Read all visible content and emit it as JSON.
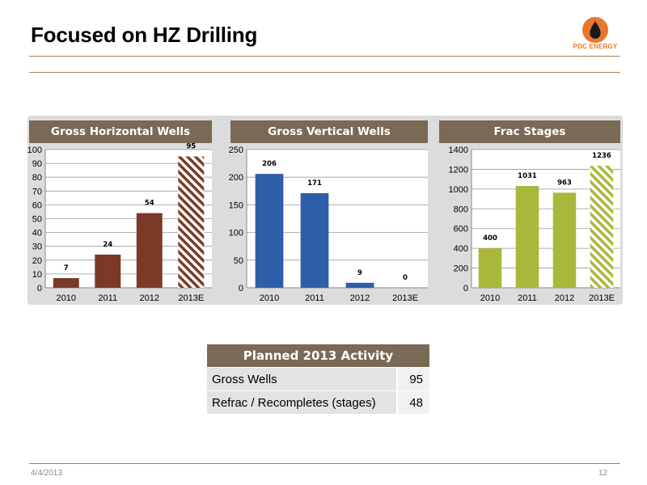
{
  "slide": {
    "title": "Focused on HZ Drilling",
    "logo_text": "PDC ENERGY",
    "footer_date": "4/4/2013",
    "page_number": "12"
  },
  "chart_data": [
    {
      "type": "bar",
      "title": "Gross Horizontal Wells",
      "categories": [
        "2010",
        "2011",
        "2012",
        "2013E"
      ],
      "values": [
        7,
        24,
        54,
        95
      ],
      "ylim": [
        0,
        100
      ],
      "yticks": [
        0,
        10,
        20,
        30,
        40,
        50,
        60,
        70,
        80,
        90,
        100
      ],
      "color": "#7b3a26",
      "estimate_pattern": "diagonal-hatch",
      "grid": true
    },
    {
      "type": "bar",
      "title": "Gross Vertical Wells",
      "categories": [
        "2010",
        "2011",
        "2012",
        "2013E"
      ],
      "values": [
        206,
        171,
        9,
        0
      ],
      "ylim": [
        0,
        250
      ],
      "yticks": [
        0,
        50,
        100,
        150,
        200,
        250
      ],
      "color": "#2e5ea8",
      "grid": true
    },
    {
      "type": "bar",
      "title": "Frac Stages",
      "categories": [
        "2010",
        "2011",
        "2012",
        "2013E"
      ],
      "values": [
        400,
        1031,
        963,
        1236
      ],
      "ylim": [
        0,
        1400
      ],
      "yticks": [
        0,
        200,
        400,
        600,
        800,
        1000,
        1200,
        1400
      ],
      "color": "#a9b83a",
      "estimate_pattern": "diagonal-hatch",
      "grid": true
    }
  ],
  "activity_table": {
    "title": "Planned 2013 Activity",
    "rows": [
      {
        "label": "Gross Wells",
        "value": "95"
      },
      {
        "label": "Refrac / Recompletes (stages)",
        "value": "48"
      }
    ]
  },
  "colors": {
    "header_bg": "#7a6a55",
    "rule": "#b07a52",
    "logo_orange": "#e8772e"
  }
}
